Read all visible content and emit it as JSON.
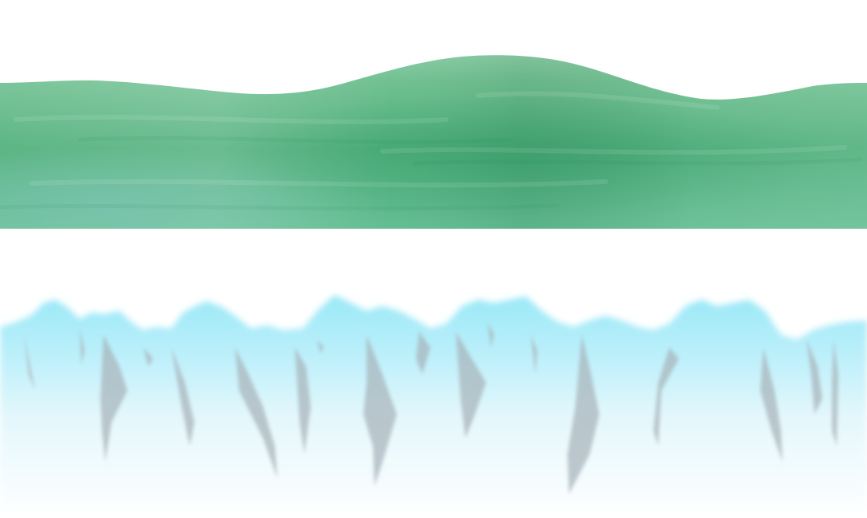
{
  "sprite_sheet": {
    "hill_layer": {
      "name": "green-hill-strip",
      "colors": {
        "top": "#7cc49a",
        "mid": "#4fb27d",
        "dark": "#3a9a68",
        "bottom": "#5fbb8f",
        "highlight": "#9bd6b4"
      }
    },
    "ice_layer": {
      "name": "ice-crystal-strip",
      "colors": {
        "cyan": "#9ceaf7",
        "fade": "#e6f8fd",
        "white": "#ffffff",
        "shard": "#b8c3c8"
      }
    }
  }
}
